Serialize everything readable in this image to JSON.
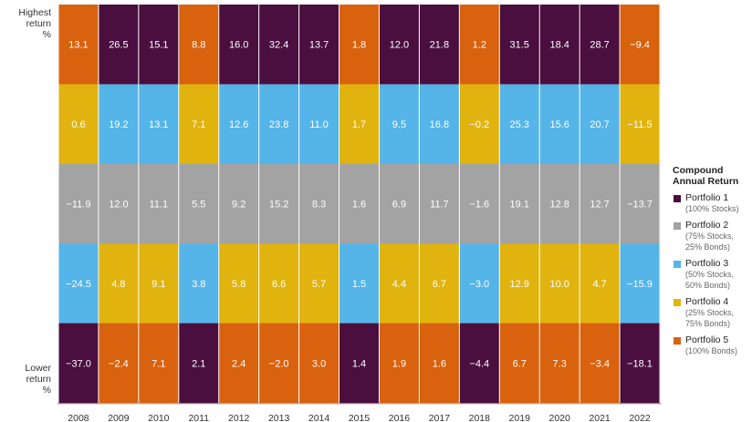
{
  "chart_data": {
    "type": "table",
    "y_top_label": [
      "Highest",
      "return",
      "%"
    ],
    "y_bottom_label": [
      "Lower",
      "return",
      "%"
    ],
    "years": [
      "2008",
      "2009",
      "2010",
      "2011",
      "2012",
      "2013",
      "2014",
      "2015",
      "2016",
      "2017",
      "2018",
      "2019",
      "2020",
      "2021",
      "2022"
    ],
    "series": [
      {
        "name": "Portfolio 1",
        "desc": [
          "(100% Stocks)"
        ],
        "color": "#4a0e3f"
      },
      {
        "name": "Portfolio 2",
        "desc": [
          "(75% Stocks,",
          "25% Bonds)"
        ],
        "color": "#a3a3a3"
      },
      {
        "name": "Portfolio 3",
        "desc": [
          "(50% Stocks,",
          "50% Bonds)"
        ],
        "color": "#55b4e8"
      },
      {
        "name": "Portfolio 4",
        "desc": [
          "(25% Stocks,",
          "75% Bonds)"
        ],
        "color": "#e0b30f"
      },
      {
        "name": "Portfolio 5",
        "desc": [
          "(100% Bonds)"
        ],
        "color": "#d9620e"
      }
    ],
    "legend_title": [
      "Compound",
      "Annual Return"
    ],
    "columns": [
      [
        {
          "v": "13.1",
          "p": 4
        },
        {
          "v": "0.6",
          "p": 3
        },
        {
          "v": "−11.9",
          "p": 1
        },
        {
          "v": "−24.5",
          "p": 2
        },
        {
          "v": "−37.0",
          "p": 0
        }
      ],
      [
        {
          "v": "26.5",
          "p": 0
        },
        {
          "v": "19.2",
          "p": 2
        },
        {
          "v": "12.0",
          "p": 1
        },
        {
          "v": "4.8",
          "p": 3
        },
        {
          "v": "−2.4",
          "p": 4
        }
      ],
      [
        {
          "v": "15.1",
          "p": 0
        },
        {
          "v": "13.1",
          "p": 2
        },
        {
          "v": "11.1",
          "p": 1
        },
        {
          "v": "9.1",
          "p": 3
        },
        {
          "v": "7.1",
          "p": 4
        }
      ],
      [
        {
          "v": "8.8",
          "p": 4
        },
        {
          "v": "7.1",
          "p": 3
        },
        {
          "v": "5.5",
          "p": 1
        },
        {
          "v": "3.8",
          "p": 2
        },
        {
          "v": "2.1",
          "p": 0
        }
      ],
      [
        {
          "v": "16.0",
          "p": 0
        },
        {
          "v": "12.6",
          "p": 2
        },
        {
          "v": "9.2",
          "p": 1
        },
        {
          "v": "5.8",
          "p": 3
        },
        {
          "v": "2.4",
          "p": 4
        }
      ],
      [
        {
          "v": "32.4",
          "p": 0
        },
        {
          "v": "23.8",
          "p": 2
        },
        {
          "v": "15.2",
          "p": 1
        },
        {
          "v": "6.6",
          "p": 3
        },
        {
          "v": "−2.0",
          "p": 4
        }
      ],
      [
        {
          "v": "13.7",
          "p": 0
        },
        {
          "v": "11.0",
          "p": 2
        },
        {
          "v": "8.3",
          "p": 1
        },
        {
          "v": "5.7",
          "p": 3
        },
        {
          "v": "3.0",
          "p": 4
        }
      ],
      [
        {
          "v": "1.8",
          "p": 4
        },
        {
          "v": "1.7",
          "p": 3
        },
        {
          "v": "1.6",
          "p": 1
        },
        {
          "v": "1.5",
          "p": 2
        },
        {
          "v": "1.4",
          "p": 0
        }
      ],
      [
        {
          "v": "12.0",
          "p": 0
        },
        {
          "v": "9.5",
          "p": 2
        },
        {
          "v": "6.9",
          "p": 1
        },
        {
          "v": "4.4",
          "p": 3
        },
        {
          "v": "1.9",
          "p": 4
        }
      ],
      [
        {
          "v": "21.8",
          "p": 0
        },
        {
          "v": "16.8",
          "p": 2
        },
        {
          "v": "11.7",
          "p": 1
        },
        {
          "v": "6.7",
          "p": 3
        },
        {
          "v": "1.6",
          "p": 4
        }
      ],
      [
        {
          "v": "1.2",
          "p": 4
        },
        {
          "v": "−0.2",
          "p": 3
        },
        {
          "v": "−1.6",
          "p": 1
        },
        {
          "v": "−3.0",
          "p": 2
        },
        {
          "v": "−4.4",
          "p": 0
        }
      ],
      [
        {
          "v": "31.5",
          "p": 0
        },
        {
          "v": "25.3",
          "p": 2
        },
        {
          "v": "19.1",
          "p": 1
        },
        {
          "v": "12.9",
          "p": 3
        },
        {
          "v": "6.7",
          "p": 4
        }
      ],
      [
        {
          "v": "18.4",
          "p": 0
        },
        {
          "v": "15.6",
          "p": 2
        },
        {
          "v": "12.8",
          "p": 1
        },
        {
          "v": "10.0",
          "p": 3
        },
        {
          "v": "7.3",
          "p": 4
        }
      ],
      [
        {
          "v": "28.7",
          "p": 0
        },
        {
          "v": "20.7",
          "p": 2
        },
        {
          "v": "12.7",
          "p": 1
        },
        {
          "v": "4.7",
          "p": 3
        },
        {
          "v": "−3.4",
          "p": 4
        }
      ],
      [
        {
          "v": "−9.4",
          "p": 4
        },
        {
          "v": "−11.5",
          "p": 3
        },
        {
          "v": "−13.7",
          "p": 1
        },
        {
          "v": "−15.9",
          "p": 2
        },
        {
          "v": "−18.1",
          "p": 0
        }
      ]
    ]
  }
}
